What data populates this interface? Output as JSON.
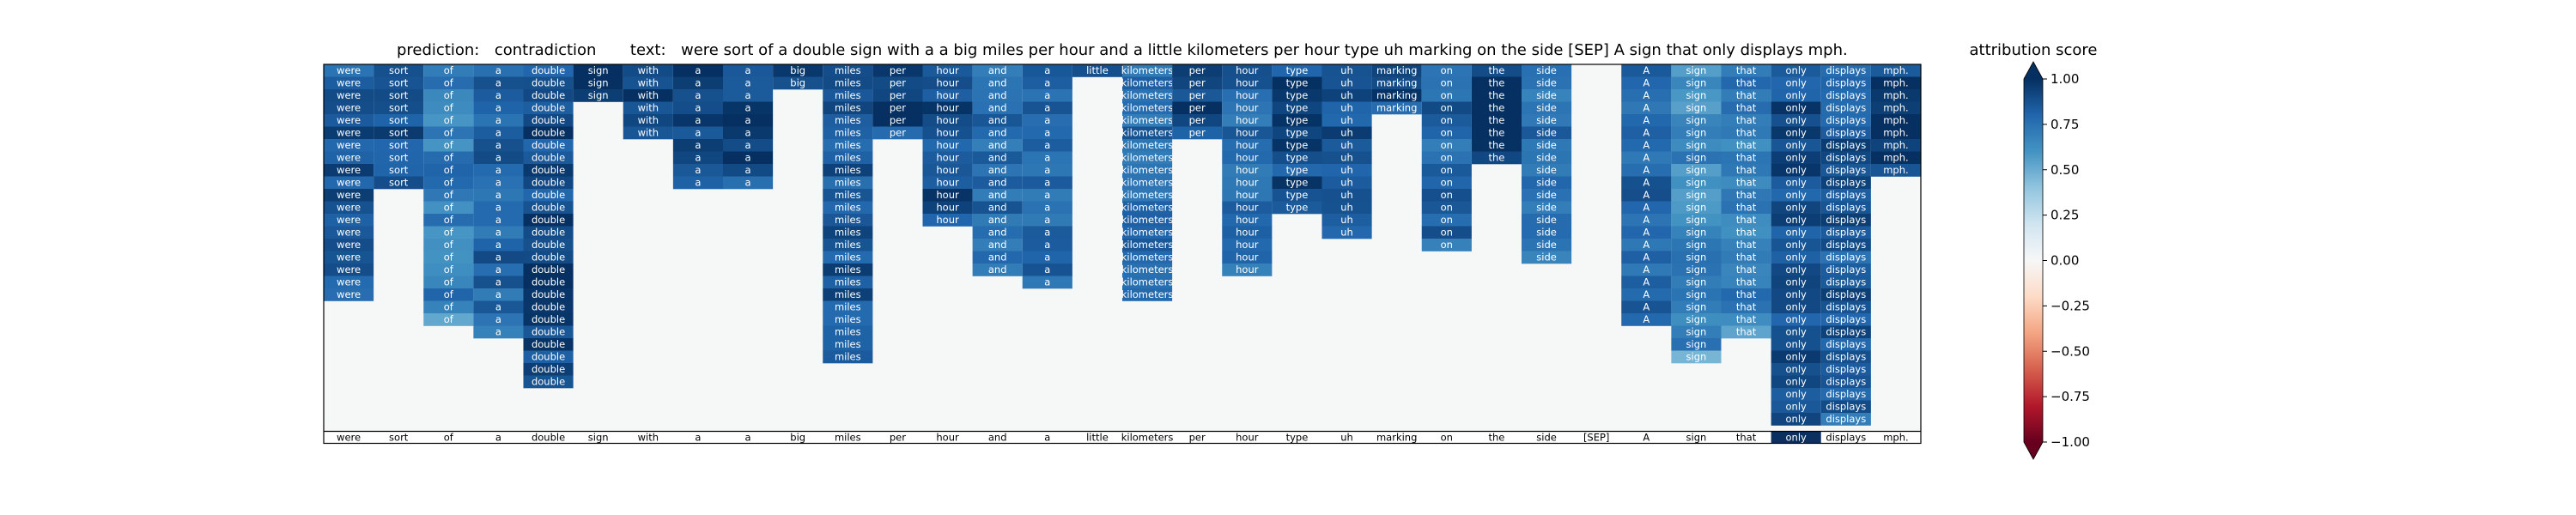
{
  "title": {
    "prediction_label": "prediction:",
    "prediction_value": "contradiction",
    "text_label": "text:",
    "text_value": "were sort of a double sign with a a big miles per hour and a little kilometers per hour type uh marking on the side [SEP] A sign that only displays mph."
  },
  "colorbar": {
    "title": "attribution score",
    "ticks": [
      "1.00",
      "0.75",
      "0.50",
      "0.25",
      "0.00",
      "−0.25",
      "−0.50",
      "−0.75",
      "−1.00"
    ],
    "tick_values": [
      1.0,
      0.75,
      0.5,
      0.25,
      0.0,
      -0.25,
      -0.5,
      -0.75,
      -1.0
    ],
    "colormap": "RdBu",
    "range": [
      -1,
      1
    ]
  },
  "chart_data": {
    "type": "heatmap",
    "tokens": [
      "were",
      "sort",
      "of",
      "a",
      "double",
      "sign",
      "with",
      "a",
      "a",
      "big",
      "miles",
      "per",
      "hour",
      "and",
      "a",
      "little",
      "kilometers",
      "per",
      "hour",
      "type",
      "uh",
      "marking",
      "on",
      "the",
      "side",
      "[SEP]",
      "A",
      "sign",
      "that",
      "only",
      "displays",
      "mph."
    ],
    "kept_row_counts": [
      19,
      10,
      21,
      22,
      26,
      3,
      6,
      10,
      10,
      2,
      24,
      6,
      13,
      17,
      18,
      1,
      19,
      6,
      17,
      12,
      14,
      4,
      15,
      8,
      16,
      0,
      21,
      24,
      22,
      29,
      29,
      9
    ],
    "mean_scores": [
      0.85,
      0.9,
      0.7,
      0.8,
      0.9,
      0.95,
      0.95,
      0.95,
      0.95,
      0.95,
      0.85,
      0.95,
      0.9,
      0.8,
      0.8,
      0.95,
      0.8,
      0.95,
      0.8,
      0.9,
      0.9,
      0.95,
      0.8,
      0.95,
      0.75,
      0.0,
      0.8,
      0.65,
      0.7,
      0.9,
      0.85,
      0.95
    ],
    "highlighted_tokens": [
      "only"
    ],
    "xlabel": "",
    "ylabel": ""
  }
}
